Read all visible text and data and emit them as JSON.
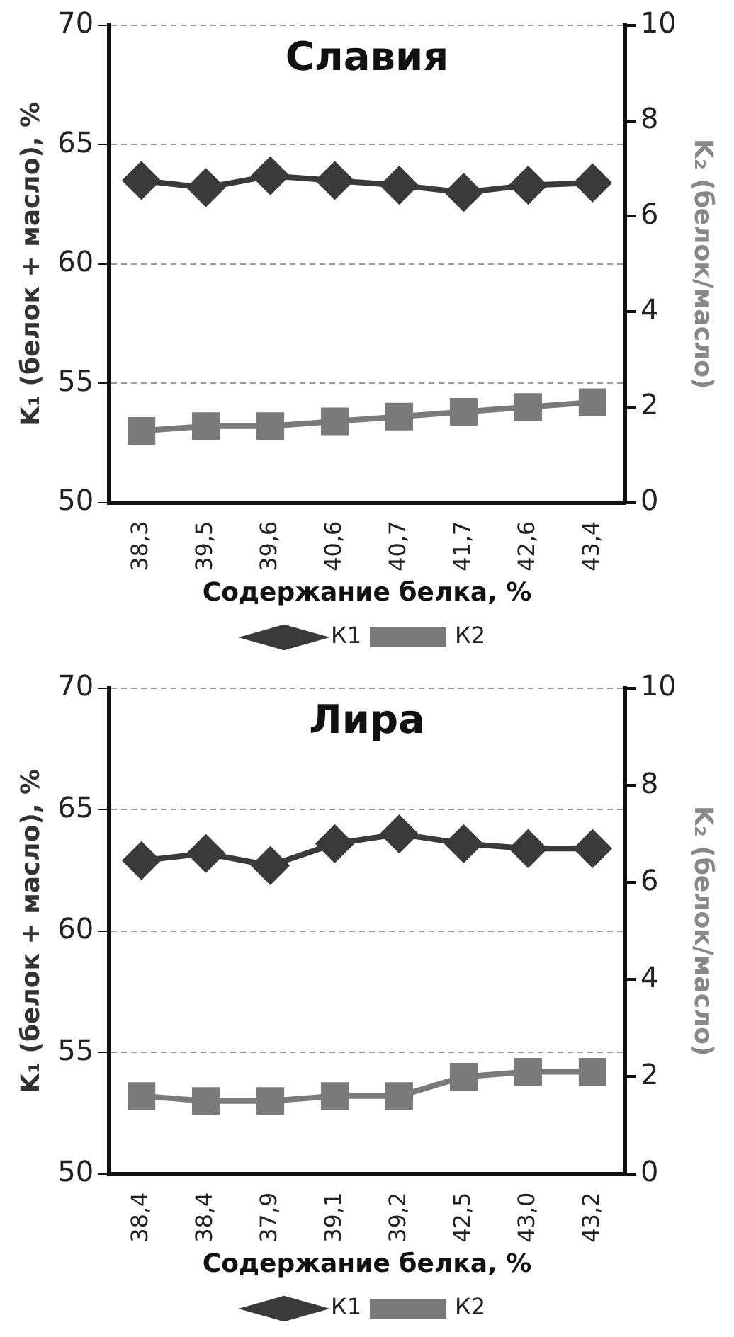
{
  "chart_data": [
    {
      "type": "line",
      "title": "Славия",
      "xlabel": "Содержание белка, %",
      "ylabel": "K₁ (белок + масло), %",
      "y2label": "K₂ (белок/масло)",
      "categories": [
        "38,3",
        "39,5",
        "39,6",
        "40,6",
        "40,7",
        "41,7",
        "42,6",
        "43,4"
      ],
      "series": [
        {
          "name": "К1",
          "color": "#3a3a3a",
          "marker": "diamond",
          "values": [
            63.5,
            63.2,
            63.7,
            63.5,
            63.3,
            63.0,
            63.3,
            63.4
          ]
        },
        {
          "name": "К2",
          "color": "#7a7a7a",
          "marker": "square",
          "axis": "y2",
          "values": [
            1.5,
            1.6,
            1.6,
            1.7,
            1.8,
            1.9,
            2.0,
            2.1
          ]
        }
      ],
      "ylim": [
        50,
        70
      ],
      "yticks": [
        50,
        55,
        60,
        65,
        70
      ],
      "y2lim": [
        0,
        10
      ],
      "y2ticks": [
        0,
        2,
        4,
        6,
        8,
        10
      ],
      "grid": "y",
      "legend": "bottom",
      "line_style": "solid"
    },
    {
      "type": "line",
      "title": "Лира",
      "xlabel": "Содержание белка, %",
      "ylabel": "K₁ (белок + масло), %",
      "y2label": "K₂ (белок/масло)",
      "categories": [
        "38,4",
        "38,4",
        "37,9",
        "39,1",
        "39,2",
        "42,5",
        "43,0",
        "43,2"
      ],
      "series": [
        {
          "name": "К1",
          "color": "#3a3a3a",
          "marker": "diamond",
          "values": [
            62.9,
            63.2,
            62.7,
            63.6,
            64.0,
            63.6,
            63.4,
            63.4
          ]
        },
        {
          "name": "К2",
          "color": "#7a7a7a",
          "marker": "square",
          "axis": "y2",
          "values": [
            1.6,
            1.5,
            1.5,
            1.6,
            1.6,
            2.0,
            2.1,
            2.1
          ]
        }
      ],
      "ylim": [
        50,
        70
      ],
      "yticks": [
        50,
        55,
        60,
        65,
        70
      ],
      "y2lim": [
        0,
        10
      ],
      "y2ticks": [
        0,
        2,
        4,
        6,
        8,
        10
      ],
      "grid": "y",
      "legend": "bottom",
      "line_style": "solid"
    }
  ]
}
